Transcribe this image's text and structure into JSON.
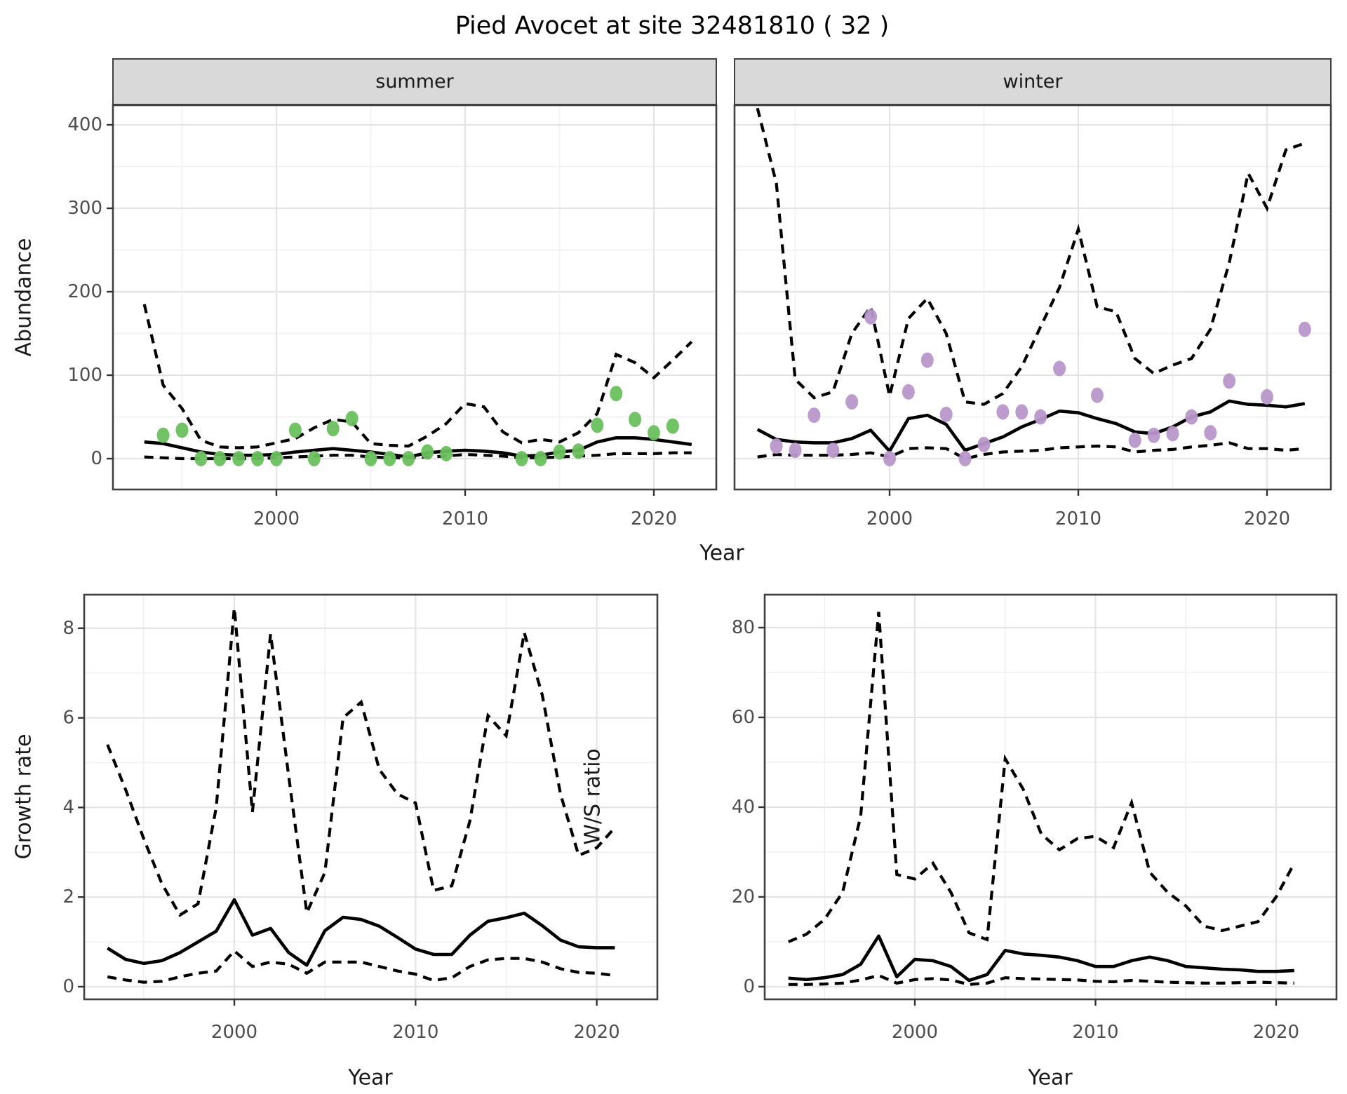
{
  "title": "Pied Avocet at site 32481810 ( 32 )",
  "labels": {
    "strip_summer": "summer",
    "strip_winter": "winter",
    "y_abundance": "Abundance",
    "y_growth": "Growth rate",
    "y_ws": "W/S ratio",
    "x_year_top": "Year",
    "x_year_bottom_left": "Year",
    "x_year_bottom_right": "Year"
  },
  "colors": {
    "summer_points": "#6abf5e",
    "winter_points": "#b897ca",
    "line": "#000000",
    "strip_bg": "#d9d9d9",
    "grid_major": "#e4e4e4",
    "grid_minor": "#f0f0f0",
    "panel_border": "#404040",
    "tick_text": "#4d4d4d",
    "tick_mark": "#333333"
  },
  "chart_data": [
    {
      "id": "abundance-summer",
      "type": "line",
      "facet": "summer",
      "title": "Pied Avocet at site 32481810 ( 32 )",
      "xlabel": "Year",
      "ylabel": "Abundance",
      "x_major": [
        2000,
        2010,
        2020
      ],
      "x_minor": [
        1995,
        2005,
        2015
      ],
      "y_major": [
        0,
        100,
        200,
        300,
        400
      ],
      "y_minor": [
        50,
        150,
        250,
        350
      ],
      "xlim": [
        1991.3,
        2023.3
      ],
      "ylim": [
        -37,
        423
      ],
      "legend": "none",
      "median": {
        "x": [
          1993,
          1994,
          1995,
          1996,
          1997,
          1998,
          1999,
          2000,
          2001,
          2002,
          2003,
          2004,
          2005,
          2006,
          2007,
          2008,
          2009,
          2010,
          2011,
          2012,
          2013,
          2014,
          2015,
          2016,
          2017,
          2018,
          2019,
          2020,
          2021,
          2022
        ],
        "y": [
          20,
          18,
          13,
          8,
          5,
          4,
          4,
          5,
          8,
          10,
          12,
          10,
          8,
          5,
          2,
          7,
          9,
          10,
          9,
          7,
          3,
          4,
          8,
          10,
          20,
          25,
          25,
          23,
          20,
          17
        ]
      },
      "upper_ci": {
        "x": [
          1993,
          1994,
          1995,
          1996,
          1997,
          1998,
          1999,
          2000,
          2001,
          2002,
          2003,
          2004,
          2005,
          2006,
          2007,
          2008,
          2009,
          2010,
          2011,
          2012,
          2013,
          2014,
          2015,
          2016,
          2017,
          2018,
          2019,
          2020,
          2021,
          2022
        ],
        "y": [
          185,
          88,
          60,
          22,
          14,
          13,
          14,
          19,
          24,
          37,
          47,
          44,
          18,
          16,
          15,
          27,
          42,
          66,
          62,
          32,
          19,
          23,
          20,
          31,
          54,
          125,
          115,
          97,
          118,
          140
        ]
      },
      "lower_ci": {
        "x": [
          1993,
          1994,
          1995,
          1996,
          1997,
          1998,
          1999,
          2000,
          2001,
          2002,
          2003,
          2004,
          2005,
          2006,
          2007,
          2008,
          2009,
          2010,
          2011,
          2012,
          2013,
          2014,
          2015,
          2016,
          2017,
          2018,
          2019,
          2020,
          2021,
          2022
        ],
        "y": [
          2,
          1,
          0,
          0,
          0,
          0,
          0,
          1,
          2,
          3,
          4,
          4,
          2,
          1,
          1,
          2,
          3,
          5,
          4,
          3,
          1,
          1,
          2,
          3,
          4,
          6,
          6,
          6,
          7,
          7
        ]
      },
      "points": {
        "x": [
          1994,
          1995,
          1996,
          1997,
          1998,
          1999,
          2000,
          2001,
          2002,
          2003,
          2004,
          2005,
          2006,
          2007,
          2008,
          2009,
          2013,
          2014,
          2015,
          2016,
          2017,
          2018,
          2019,
          2020,
          2021
        ],
        "y": [
          28,
          34,
          0,
          0,
          0,
          0,
          0,
          34,
          0,
          36,
          48,
          0,
          0,
          0,
          8,
          6,
          0,
          0,
          8,
          9,
          40,
          78,
          47,
          31,
          39
        ]
      }
    },
    {
      "id": "abundance-winter",
      "type": "line",
      "facet": "winter",
      "xlabel": "Year",
      "ylabel": "Abundance",
      "x_major": [
        2000,
        2010,
        2020
      ],
      "x_minor": [
        1995,
        2005,
        2015
      ],
      "y_major": [
        0,
        100,
        200,
        300,
        400
      ],
      "y_minor": [
        50,
        150,
        250,
        350
      ],
      "xlim": [
        1991.8,
        2023.4
      ],
      "ylim": [
        -37,
        423
      ],
      "legend": "none",
      "median": {
        "x": [
          1993,
          1994,
          1995,
          1996,
          1997,
          1998,
          1999,
          2000,
          2001,
          2002,
          2003,
          2004,
          2005,
          2006,
          2007,
          2008,
          2009,
          2010,
          2011,
          2012,
          2013,
          2014,
          2015,
          2016,
          2017,
          2018,
          2019,
          2020,
          2021,
          2022
        ],
        "y": [
          35,
          23,
          20,
          19,
          19,
          24,
          34,
          9,
          48,
          52,
          41,
          10,
          18,
          26,
          38,
          47,
          57,
          55,
          48,
          42,
          32,
          30,
          38,
          50,
          56,
          69,
          65,
          64,
          62,
          66
        ]
      },
      "upper_ci": {
        "x": [
          1993,
          1994,
          1995,
          1996,
          1997,
          1998,
          1999,
          2000,
          2001,
          2002,
          2003,
          2004,
          2005,
          2006,
          2007,
          2008,
          2009,
          2010,
          2011,
          2012,
          2013,
          2014,
          2015,
          2016,
          2017,
          2018,
          2019,
          2020,
          2021,
          2022
        ],
        "y": [
          420,
          330,
          95,
          73,
          80,
          150,
          182,
          75,
          168,
          192,
          150,
          68,
          65,
          78,
          110,
          158,
          205,
          275,
          182,
          176,
          120,
          102,
          112,
          120,
          155,
          235,
          342,
          300,
          370,
          378
        ]
      },
      "lower_ci": {
        "x": [
          1993,
          1994,
          1995,
          1996,
          1997,
          1998,
          1999,
          2000,
          2001,
          2002,
          2003,
          2004,
          2005,
          2006,
          2007,
          2008,
          2009,
          2010,
          2011,
          2012,
          2013,
          2014,
          2015,
          2016,
          2017,
          2018,
          2019,
          2020,
          2021,
          2022
        ],
        "y": [
          2,
          5,
          4,
          4,
          4,
          5,
          7,
          2,
          12,
          13,
          12,
          0,
          5,
          8,
          9,
          10,
          13,
          14,
          15,
          14,
          8,
          10,
          11,
          14,
          16,
          19,
          12,
          12,
          10,
          12
        ]
      },
      "points": {
        "x": [
          1994,
          1995,
          1996,
          1997,
          1998,
          1999,
          2000,
          2001,
          2002,
          2003,
          2004,
          2005,
          2006,
          2007,
          2008,
          2009,
          2011,
          2013,
          2014,
          2015,
          2016,
          2017,
          2018,
          2020,
          2022
        ],
        "y": [
          15,
          10,
          52,
          10,
          68,
          170,
          0,
          80,
          118,
          53,
          0,
          17,
          56,
          56,
          50,
          108,
          76,
          22,
          28,
          30,
          50,
          31,
          93,
          74,
          155
        ]
      }
    },
    {
      "id": "growth-rate",
      "type": "line",
      "facet": null,
      "xlabel": "Year",
      "ylabel": "Growth rate",
      "x_major": [
        2000,
        2010,
        2020
      ],
      "x_minor": [
        1995,
        2005,
        2015
      ],
      "y_major": [
        0,
        2,
        4,
        6,
        8
      ],
      "y_minor": [
        1,
        3,
        5,
        7
      ],
      "xlim": [
        1991.7,
        2023.3
      ],
      "ylim": [
        -0.28,
        8.75
      ],
      "legend": "none",
      "median": {
        "x": [
          1993,
          1994,
          1995,
          1996,
          1997,
          1998,
          1999,
          2000,
          2001,
          2002,
          2003,
          2004,
          2005,
          2006,
          2007,
          2008,
          2009,
          2010,
          2011,
          2012,
          2013,
          2014,
          2015,
          2016,
          2017,
          2018,
          2019,
          2020,
          2021
        ],
        "y": [
          0.86,
          0.61,
          0.52,
          0.58,
          0.76,
          1.0,
          1.24,
          1.94,
          1.15,
          1.3,
          0.76,
          0.48,
          1.25,
          1.55,
          1.5,
          1.35,
          1.1,
          0.84,
          0.72,
          0.72,
          1.15,
          1.46,
          1.54,
          1.64,
          1.36,
          1.04,
          0.89,
          0.87,
          0.87
        ]
      },
      "upper_ci": {
        "x": [
          1993,
          1994,
          1995,
          1996,
          1997,
          1998,
          1999,
          2000,
          2001,
          2002,
          2003,
          2004,
          2005,
          2006,
          2007,
          2008,
          2009,
          2010,
          2011,
          2012,
          2013,
          2014,
          2015,
          2016,
          2017,
          2018,
          2019,
          2020,
          2021
        ],
        "y": [
          5.4,
          4.4,
          3.3,
          2.3,
          1.6,
          1.85,
          4.0,
          8.45,
          3.9,
          7.87,
          4.7,
          1.65,
          2.55,
          6.0,
          6.35,
          4.85,
          4.3,
          4.1,
          2.15,
          2.25,
          3.7,
          6.05,
          5.6,
          7.9,
          6.5,
          4.3,
          2.93,
          3.1,
          3.55
        ]
      },
      "lower_ci": {
        "x": [
          1993,
          1994,
          1995,
          1996,
          1997,
          1998,
          1999,
          2000,
          2001,
          2002,
          2003,
          2004,
          2005,
          2006,
          2007,
          2008,
          2009,
          2010,
          2011,
          2012,
          2013,
          2014,
          2015,
          2016,
          2017,
          2018,
          2019,
          2020,
          2021
        ],
        "y": [
          0.22,
          0.15,
          0.1,
          0.12,
          0.22,
          0.3,
          0.35,
          0.8,
          0.45,
          0.55,
          0.5,
          0.3,
          0.55,
          0.55,
          0.55,
          0.45,
          0.35,
          0.28,
          0.14,
          0.2,
          0.45,
          0.6,
          0.63,
          0.63,
          0.55,
          0.4,
          0.32,
          0.3,
          0.25
        ]
      },
      "points": {
        "x": [],
        "y": []
      }
    },
    {
      "id": "ws-ratio",
      "type": "line",
      "facet": null,
      "xlabel": "Year",
      "ylabel": "W/S ratio",
      "x_major": [
        2000,
        2010,
        2020
      ],
      "x_minor": [
        1995,
        2005,
        2015
      ],
      "y_major": [
        0,
        20,
        40,
        60,
        80
      ],
      "y_minor": [
        10,
        30,
        50,
        70
      ],
      "xlim": [
        1991.7,
        2023.3
      ],
      "ylim": [
        -2.8,
        87.3
      ],
      "legend": "none",
      "median": {
        "x": [
          1993,
          1994,
          1995,
          1996,
          1997,
          1998,
          1999,
          2000,
          2001,
          2002,
          2003,
          2004,
          2005,
          2006,
          2007,
          2008,
          2009,
          2010,
          2011,
          2012,
          2013,
          2014,
          2015,
          2016,
          2017,
          2018,
          2019,
          2020,
          2021
        ],
        "y": [
          1.9,
          1.6,
          2.0,
          2.7,
          5.0,
          11.3,
          2.2,
          6.1,
          5.8,
          4.5,
          1.4,
          2.7,
          8.1,
          7.3,
          7.0,
          6.6,
          5.8,
          4.5,
          4.5,
          5.8,
          6.6,
          5.8,
          4.5,
          4.2,
          3.9,
          3.75,
          3.4,
          3.4,
          3.6
        ]
      },
      "upper_ci": {
        "x": [
          1993,
          1994,
          1995,
          1996,
          1997,
          1998,
          1999,
          2000,
          2001,
          2002,
          2003,
          2004,
          2005,
          2006,
          2007,
          2008,
          2009,
          2010,
          2011,
          2012,
          2013,
          2014,
          2015,
          2016,
          2017,
          2018,
          2019,
          2020,
          2021
        ],
        "y": [
          10,
          11.7,
          15,
          21,
          38,
          83.5,
          25,
          24,
          27.5,
          21,
          12,
          10.5,
          50.8,
          44,
          34,
          30.5,
          33,
          33.5,
          31,
          41,
          25.5,
          21,
          18,
          13.5,
          12.5,
          13.5,
          14.5,
          20,
          27.5
        ]
      },
      "lower_ci": {
        "x": [
          1993,
          1994,
          1995,
          1996,
          1997,
          1998,
          1999,
          2000,
          2001,
          2002,
          2003,
          2004,
          2005,
          2006,
          2007,
          2008,
          2009,
          2010,
          2011,
          2012,
          2013,
          2014,
          2015,
          2016,
          2017,
          2018,
          2019,
          2020,
          2021
        ],
        "y": [
          0.5,
          0.5,
          0.6,
          0.8,
          1.5,
          2.5,
          0.8,
          1.6,
          1.8,
          1.5,
          0.5,
          0.8,
          2.0,
          1.8,
          1.7,
          1.6,
          1.5,
          1.2,
          1.1,
          1.4,
          1.2,
          1.0,
          0.9,
          0.8,
          0.8,
          0.9,
          1.0,
          0.9,
          0.8
        ]
      },
      "points": {
        "x": [],
        "y": []
      }
    }
  ]
}
